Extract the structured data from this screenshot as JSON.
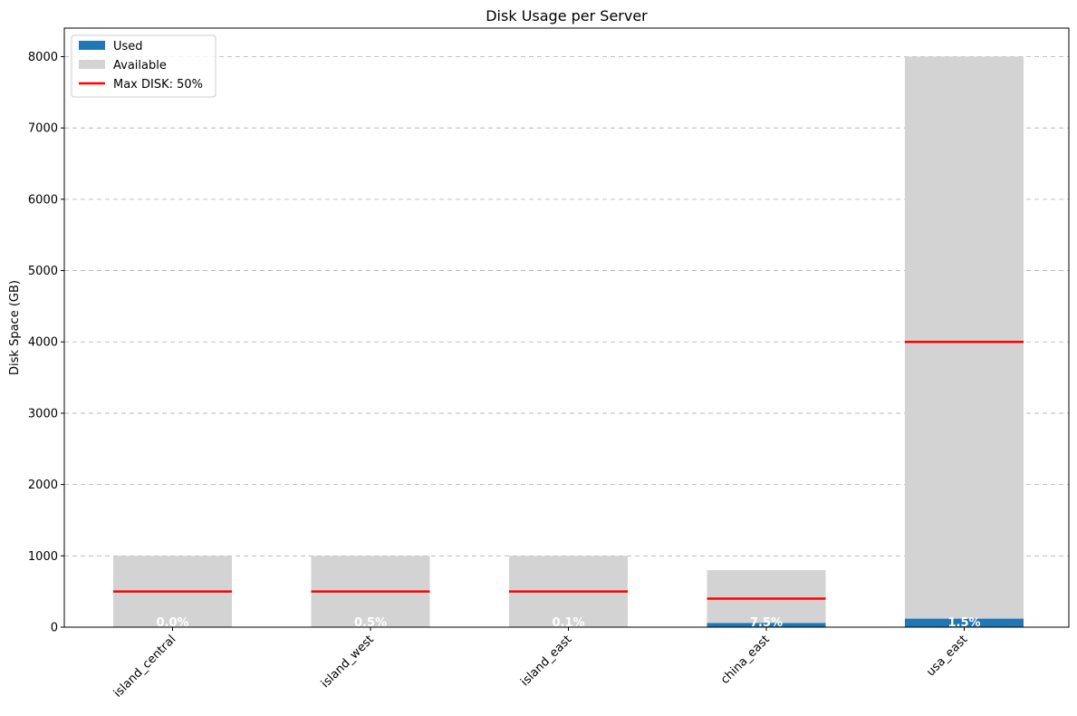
{
  "chart_data": {
    "type": "bar",
    "title": "Disk Usage per Server",
    "xlabel": "",
    "ylabel": "Disk Space (GB)",
    "ylim": [
      0,
      8400
    ],
    "yticks": [
      0,
      1000,
      2000,
      3000,
      4000,
      5000,
      6000,
      7000,
      8000
    ],
    "grid": "horizontal dashed",
    "legend_position": "top-left",
    "categories": [
      "island_central",
      "island_west",
      "island_east",
      "china_east",
      "usa_east"
    ],
    "series": [
      {
        "name": "Used",
        "values": [
          0.3,
          5,
          1,
          60,
          120
        ],
        "color": "#1f77b4"
      },
      {
        "name": "Available",
        "values": [
          999.7,
          995,
          999,
          740,
          7880
        ],
        "color": "#d3d3d3"
      }
    ],
    "totals": [
      1000,
      1000,
      1000,
      800,
      8000
    ],
    "usage_labels": [
      "0.0%",
      "0.5%",
      "0.1%",
      "7.5%",
      "1.5%"
    ],
    "threshold": {
      "name": "Max DISK: 50%",
      "values": [
        500,
        500,
        500,
        400,
        4000
      ],
      "color": "#ff0000"
    }
  }
}
